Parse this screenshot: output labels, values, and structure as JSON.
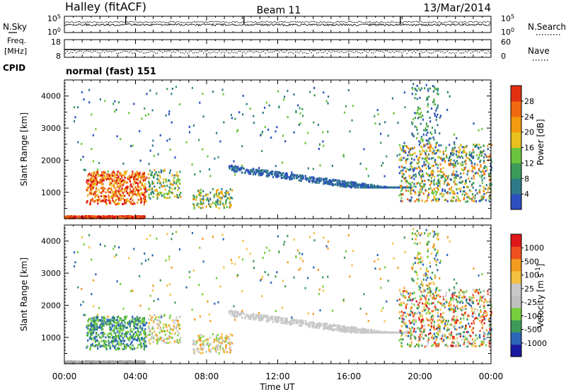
{
  "header": {
    "station": "Halley (fitACF)",
    "beam": "Beam 11",
    "date": "13/Mar/2014"
  },
  "strips": {
    "nsky_label": "N.Sky",
    "nsky_ticks": [
      "10^5",
      "10^0"
    ],
    "nsearch_label": "N.Search",
    "nsearch_ticks": [
      "10^5",
      "10^0"
    ],
    "freq_label_1": "Freq.",
    "freq_label_2": "[MHz]",
    "freq_ticks": [
      "18",
      "8"
    ],
    "nave_label": "Nave",
    "nave_ticks": [
      "60",
      "0"
    ],
    "cpid_label": "CPID",
    "cpid_value": "normal (fast) 151"
  },
  "colors": {
    "power": [
      "#1a1aff",
      "#2c4fbf",
      "#2e7a88",
      "#3c9a5a",
      "#6cc43c",
      "#e8c020",
      "#f39a10",
      "#ef6a10",
      "#e03010",
      "#e01010"
    ],
    "velocity": [
      "#e01818",
      "#f05020",
      "#f39a20",
      "#f3c040",
      "#c8c8c8",
      "#c0c0c0",
      "#78cf3c",
      "#3c9a58",
      "#2c66b8",
      "#1a1a9f"
    ],
    "ground": "#aaaaaa"
  },
  "chart_data": [
    {
      "type": "heatmap",
      "name": "power",
      "xlabel": "",
      "ylabel": "Slant Range [km]",
      "colorbar_label": "Power [dB]",
      "colorbar_ticks": [
        "28",
        "24",
        "20",
        "16",
        "12",
        "8",
        "4"
      ],
      "colorbar_range": [
        0,
        32
      ],
      "y_ticks": [
        "4000",
        "3000",
        "2000",
        "1000"
      ],
      "ylim": [
        180,
        4500
      ],
      "xlim_hours": [
        0,
        24
      ]
    },
    {
      "type": "heatmap",
      "name": "velocity",
      "xlabel": "Time UT",
      "ylabel": "Slant Range [km]",
      "colorbar_label": "Velocity [m s^-1]",
      "colorbar_ticks": [
        "1000",
        "500",
        "100",
        "25",
        "-25",
        "-100",
        "-500",
        "-1000"
      ],
      "y_ticks": [
        "4000",
        "3000",
        "2000",
        "1000"
      ],
      "x_ticks": [
        "00:00",
        "04:00",
        "08:00",
        "12:00",
        "16:00",
        "20:00",
        "00:00"
      ],
      "ylim": [
        180,
        4500
      ],
      "xlim_hours": [
        0,
        24
      ]
    }
  ]
}
